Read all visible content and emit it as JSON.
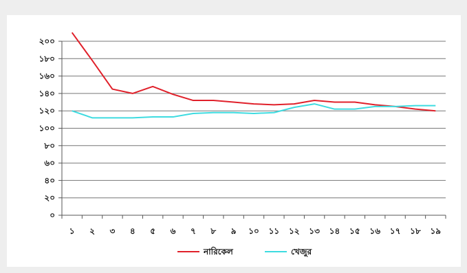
{
  "chart_data": {
    "type": "line",
    "title": "",
    "xlabel": "",
    "ylabel": "",
    "ylim": [
      0,
      240
    ],
    "yticks": [
      "০",
      "২০",
      "৪০",
      "৬০",
      "৮০",
      "১০০",
      "১২০",
      "১৪০",
      "১৬০",
      "১৮০",
      "২০০"
    ],
    "ytick_values": [
      0,
      20,
      40,
      60,
      80,
      100,
      120,
      140,
      160,
      180,
      200
    ],
    "categories": [
      "১",
      "২",
      "৩",
      "৪",
      "৫",
      "৬",
      "৭",
      "৮",
      "৯",
      "১০",
      "১১",
      "১২",
      "১৩",
      "১৪",
      "১৫",
      "১৬",
      "১৭",
      "১৮",
      "১৯"
    ],
    "x": [
      1,
      2,
      3,
      4,
      5,
      6,
      7,
      8,
      9,
      10,
      11,
      12,
      13,
      14,
      15,
      16,
      17,
      18,
      19
    ],
    "series": [
      {
        "name": "নারিকেল",
        "color": "#e0202a",
        "values": [
          210,
          178,
          145,
          140,
          148,
          139,
          132,
          132,
          130,
          128,
          127,
          128,
          132,
          130,
          130,
          127,
          125,
          122,
          120
        ]
      },
      {
        "name": "খেজুর",
        "color": "#3ddbe0",
        "values": [
          120,
          112,
          112,
          112,
          113,
          113,
          117,
          118,
          118,
          117,
          118,
          124,
          128,
          122,
          122,
          125,
          125,
          126,
          126
        ]
      }
    ],
    "grid": true,
    "legend_position": "bottom"
  }
}
